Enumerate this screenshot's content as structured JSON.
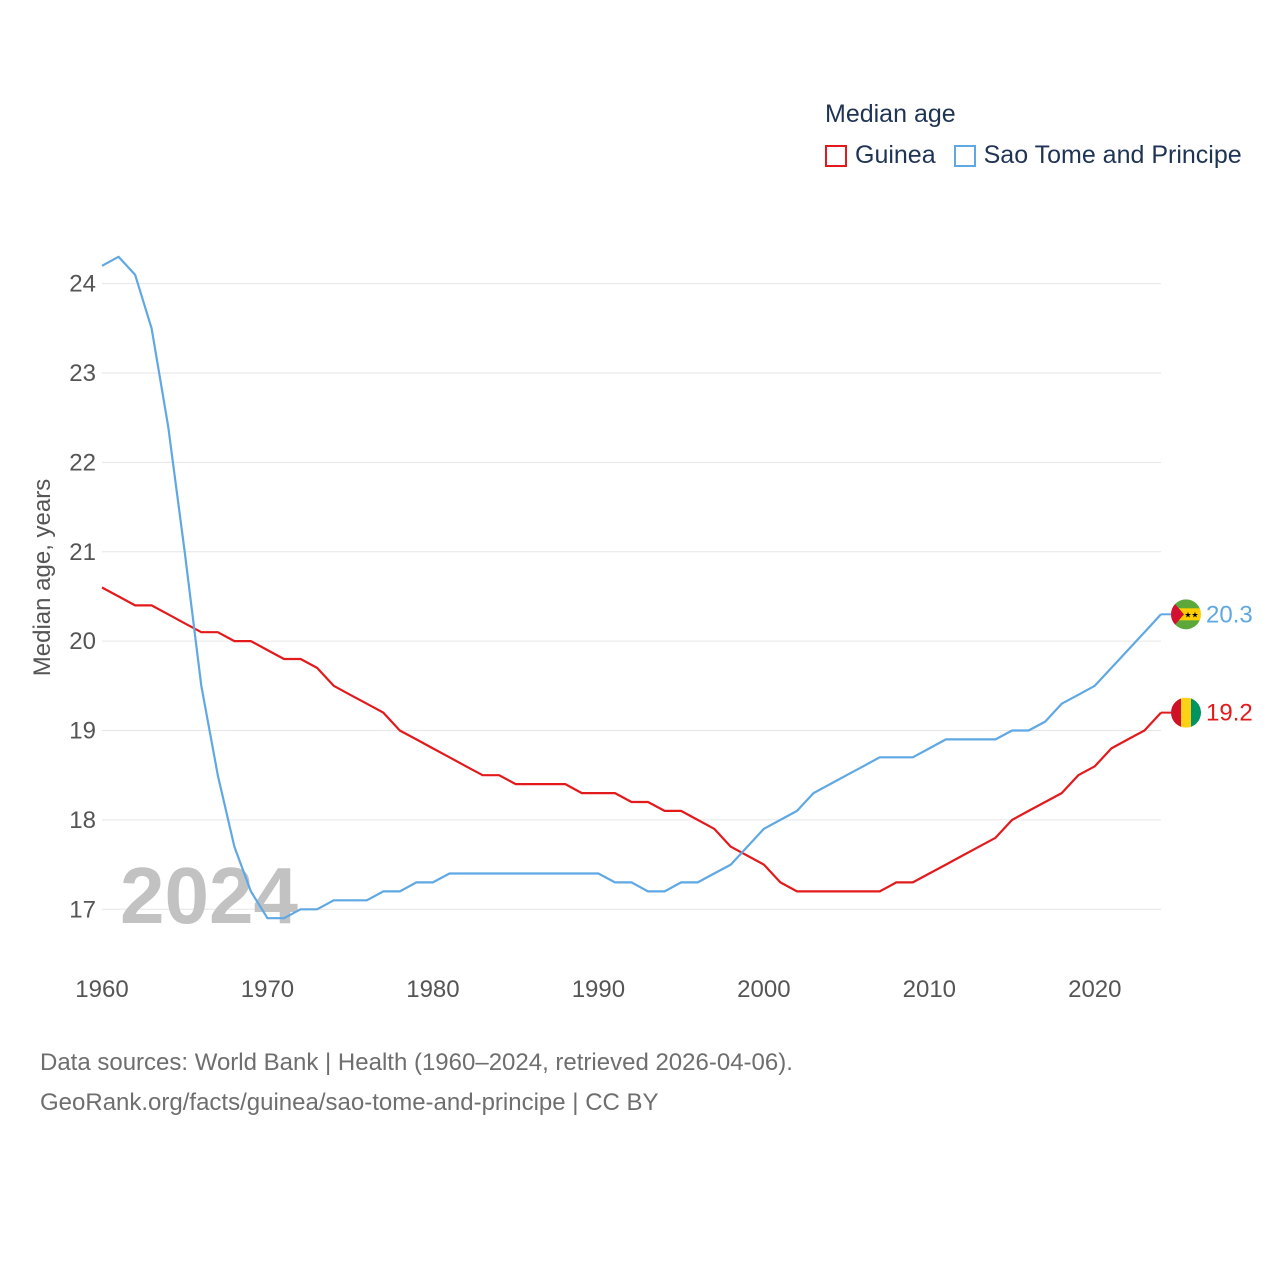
{
  "legend": {
    "title": "Median age",
    "items": [
      {
        "label": "Guinea",
        "color": "#e31a1c"
      },
      {
        "label": "Sao Tome and Principe",
        "color": "#5fa8e3"
      }
    ]
  },
  "watermark_year": "2024",
  "footer": {
    "line1": "Data sources: World Bank | Health (1960–2024, retrieved 2026-04-06).",
    "line2": "GeoRank.org/facts/guinea/sao-tome-and-principe | CC BY"
  },
  "chart_data": {
    "type": "line",
    "title": "Median age",
    "xlabel": "",
    "ylabel": "Median age, years",
    "xlim": [
      1960,
      2024
    ],
    "ylim": [
      16.6,
      24.6
    ],
    "x_ticks": [
      1960,
      1970,
      1980,
      1990,
      2000,
      2010,
      2020
    ],
    "y_ticks": [
      17,
      18,
      19,
      20,
      21,
      22,
      23,
      24
    ],
    "grid": true,
    "legend_position": "top-right",
    "x": [
      1960,
      1961,
      1962,
      1963,
      1964,
      1965,
      1966,
      1967,
      1968,
      1969,
      1970,
      1971,
      1972,
      1973,
      1974,
      1975,
      1976,
      1977,
      1978,
      1979,
      1980,
      1981,
      1982,
      1983,
      1984,
      1985,
      1986,
      1987,
      1988,
      1989,
      1990,
      1991,
      1992,
      1993,
      1994,
      1995,
      1996,
      1997,
      1998,
      1999,
      2000,
      2001,
      2002,
      2003,
      2004,
      2005,
      2006,
      2007,
      2008,
      2009,
      2010,
      2011,
      2012,
      2013,
      2014,
      2015,
      2016,
      2017,
      2018,
      2019,
      2020,
      2021,
      2022,
      2023,
      2024
    ],
    "series": [
      {
        "name": "Guinea",
        "color": "#e31a1c",
        "end_label": "19.2",
        "flag": "guinea",
        "values": [
          20.6,
          20.5,
          20.4,
          20.4,
          20.3,
          20.2,
          20.1,
          20.1,
          20.0,
          20.0,
          19.9,
          19.8,
          19.8,
          19.7,
          19.5,
          19.4,
          19.3,
          19.2,
          19.0,
          18.9,
          18.8,
          18.7,
          18.6,
          18.5,
          18.5,
          18.4,
          18.4,
          18.4,
          18.4,
          18.3,
          18.3,
          18.3,
          18.2,
          18.2,
          18.1,
          18.1,
          18.0,
          17.9,
          17.7,
          17.6,
          17.5,
          17.3,
          17.2,
          17.2,
          17.2,
          17.2,
          17.2,
          17.2,
          17.3,
          17.3,
          17.4,
          17.5,
          17.6,
          17.7,
          17.8,
          18.0,
          18.1,
          18.2,
          18.3,
          18.5,
          18.6,
          18.8,
          18.9,
          19.0,
          19.2
        ]
      },
      {
        "name": "Sao Tome and Principe",
        "color": "#5fa8e3",
        "end_label": "20.3",
        "flag": "sao-tome",
        "values": [
          24.2,
          24.3,
          24.1,
          23.5,
          22.4,
          21.0,
          19.5,
          18.5,
          17.7,
          17.2,
          16.9,
          16.9,
          17.0,
          17.0,
          17.1,
          17.1,
          17.1,
          17.2,
          17.2,
          17.3,
          17.3,
          17.4,
          17.4,
          17.4,
          17.4,
          17.4,
          17.4,
          17.4,
          17.4,
          17.4,
          17.4,
          17.3,
          17.3,
          17.2,
          17.2,
          17.3,
          17.3,
          17.4,
          17.5,
          17.7,
          17.9,
          18.0,
          18.1,
          18.3,
          18.4,
          18.5,
          18.6,
          18.7,
          18.7,
          18.7,
          18.8,
          18.9,
          18.9,
          18.9,
          18.9,
          19.0,
          19.0,
          19.1,
          19.3,
          19.4,
          19.5,
          19.7,
          19.9,
          20.1,
          20.3
        ]
      }
    ]
  }
}
